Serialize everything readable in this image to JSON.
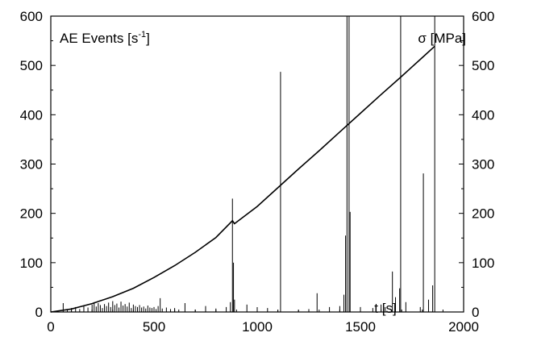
{
  "chart_data": {
    "type": "line",
    "xlabel": "t [s]",
    "ylabel_left_main": "AE Events [s",
    "ylabel_left_sup": "-1",
    "ylabel_left_close": "]",
    "ylabel_right": "σ [MPa]",
    "xlim": [
      0,
      2000
    ],
    "ylim_left": [
      0,
      600
    ],
    "ylim_right": [
      0,
      600
    ],
    "x_ticks": [
      0,
      500,
      1000,
      1500,
      2000
    ],
    "y_ticks_left": [
      0,
      100,
      200,
      300,
      400,
      500,
      600
    ],
    "y_ticks_right": [
      0,
      100,
      200,
      300,
      400,
      500,
      600
    ],
    "grid": false,
    "series": [
      {
        "kind": "line",
        "points": [
          [
            0,
            0
          ],
          [
            100,
            6
          ],
          [
            200,
            17
          ],
          [
            300,
            31
          ],
          [
            400,
            48
          ],
          [
            500,
            70
          ],
          [
            600,
            94
          ],
          [
            700,
            121
          ],
          [
            800,
            151
          ],
          [
            880,
            185
          ],
          [
            890,
            179
          ],
          [
            1000,
            214
          ],
          [
            1100,
            252
          ],
          [
            1200,
            290
          ],
          [
            1300,
            327
          ],
          [
            1400,
            365
          ],
          [
            1500,
            403
          ],
          [
            1600,
            441
          ],
          [
            1700,
            478
          ],
          [
            1800,
            516
          ],
          [
            1860,
            539
          ]
        ]
      },
      {
        "kind": "spikes",
        "points": [
          [
            60,
            18
          ],
          [
            80,
            5
          ],
          [
            100,
            8
          ],
          [
            120,
            10
          ],
          [
            140,
            6
          ],
          [
            160,
            12
          ],
          [
            180,
            9
          ],
          [
            200,
            15
          ],
          [
            210,
            20
          ],
          [
            220,
            11
          ],
          [
            230,
            18
          ],
          [
            240,
            14
          ],
          [
            250,
            8
          ],
          [
            260,
            16
          ],
          [
            270,
            12
          ],
          [
            280,
            19
          ],
          [
            290,
            10
          ],
          [
            300,
            22
          ],
          [
            310,
            14
          ],
          [
            320,
            17
          ],
          [
            330,
            9
          ],
          [
            340,
            21
          ],
          [
            350,
            13
          ],
          [
            360,
            16
          ],
          [
            370,
            11
          ],
          [
            380,
            19
          ],
          [
            390,
            8
          ],
          [
            400,
            15
          ],
          [
            410,
            12
          ],
          [
            420,
            10
          ],
          [
            430,
            14
          ],
          [
            440,
            9
          ],
          [
            450,
            11
          ],
          [
            460,
            7
          ],
          [
            470,
            13
          ],
          [
            480,
            9
          ],
          [
            490,
            8
          ],
          [
            500,
            10
          ],
          [
            510,
            6
          ],
          [
            520,
            12
          ],
          [
            530,
            28
          ],
          [
            540,
            7
          ],
          [
            560,
            9
          ],
          [
            580,
            6
          ],
          [
            600,
            8
          ],
          [
            620,
            5
          ],
          [
            650,
            18
          ],
          [
            700,
            5
          ],
          [
            750,
            12
          ],
          [
            800,
            7
          ],
          [
            850,
            10
          ],
          [
            870,
            20
          ],
          [
            880,
            230
          ],
          [
            885,
            100
          ],
          [
            890,
            25
          ],
          [
            950,
            15
          ],
          [
            1000,
            5
          ],
          [
            1050,
            8
          ],
          [
            1100,
            4
          ],
          [
            1113,
            487
          ],
          [
            1200,
            4
          ],
          [
            1250,
            6
          ],
          [
            1290,
            38
          ],
          [
            1350,
            10
          ],
          [
            1400,
            12
          ],
          [
            1420,
            35
          ],
          [
            1428,
            155
          ],
          [
            1435,
            600
          ],
          [
            1445,
            600
          ],
          [
            1450,
            203
          ],
          [
            1500,
            10
          ],
          [
            1560,
            8
          ],
          [
            1600,
            15
          ],
          [
            1620,
            10
          ],
          [
            1655,
            82
          ],
          [
            1670,
            30
          ],
          [
            1690,
            48
          ],
          [
            1695,
            600
          ],
          [
            1720,
            20
          ],
          [
            1790,
            10
          ],
          [
            1805,
            281
          ],
          [
            1830,
            25
          ],
          [
            1850,
            54
          ],
          [
            1860,
            600
          ]
        ]
      }
    ]
  }
}
